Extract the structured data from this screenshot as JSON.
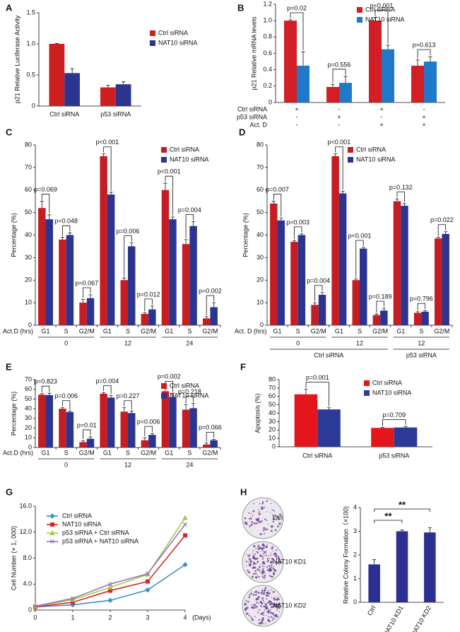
{
  "chart_data": [
    {
      "type": "bar",
      "panel": "A",
      "ylabel": "p21 Relative Luciferase Activity",
      "categories": [
        "Ctrl siRNA",
        "p53 siRNA"
      ],
      "series": [
        {
          "name": "Ctrl siRNA",
          "color": "#cc1f1f",
          "values": [
            1.0,
            0.3
          ],
          "errors": [
            0.005,
            0.035
          ]
        },
        {
          "name": "NAT10 siRNA",
          "color": "#2b3590",
          "values": [
            0.53,
            0.35
          ],
          "errors": [
            0.07,
            0.04
          ]
        }
      ],
      "ylim": [
        0,
        1.5
      ],
      "yticks": [
        0,
        0.5,
        {
          "value": 1.0,
          "label": "1.0"
        },
        1.5
      ]
    },
    {
      "type": "bar",
      "panel": "B",
      "ylabel": "p21 Relative mRNA levels",
      "categories": [
        null,
        null,
        null,
        null
      ],
      "series": [
        {
          "name": "Ctrl siRNA",
          "color": "#d21f26",
          "values": [
            1.0,
            0.19,
            1.0,
            0.45
          ],
          "errors": [
            0.01,
            0.03,
            0.04,
            0.07
          ]
        },
        {
          "name": "NAT10 siRNA",
          "color": "#1f78c8",
          "values": [
            0.45,
            0.24,
            0.65,
            0.5
          ],
          "errors": [
            0.17,
            0.08,
            0.05,
            0.06
          ]
        }
      ],
      "ylim": [
        0,
        1.2
      ],
      "yticks": [
        0,
        0.2,
        0.4,
        0.6,
        0.8,
        {
          "value": 1.0,
          "label": "1.0"
        },
        1.2
      ],
      "pvalues": [
        "p=0.02",
        "p=0.556",
        "p<0.001",
        "p=0.613"
      ],
      "condition_table": [
        {
          "label": "Ctrl siRNA",
          "signs": [
            "+",
            "-",
            "+",
            "-"
          ]
        },
        {
          "label": "p53 siRNA",
          "signs": [
            "-",
            "+",
            "-",
            "+"
          ]
        },
        {
          "label": "Act. D",
          "signs": [
            "-",
            "-",
            "+",
            "+"
          ]
        }
      ]
    },
    {
      "type": "bar",
      "panel": "C",
      "ylabel": "Percentage (%)",
      "categories": [
        "G1",
        "S",
        "G2/M",
        "G1",
        "S",
        "G2/M",
        "G1",
        "S",
        "G2/M"
      ],
      "series": [
        {
          "name": "Ctrl siRNA",
          "color": "#c41e24",
          "values": [
            52,
            38,
            10,
            75,
            20,
            5,
            60,
            36,
            3
          ],
          "errors": [
            3,
            1,
            1.5,
            1,
            1,
            0.5,
            3,
            2,
            0.8
          ]
        },
        {
          "name": "NAT10 siRNA",
          "color": "#2b3590",
          "values": [
            47,
            40,
            12,
            58,
            35,
            7,
            47,
            44,
            8
          ],
          "errors": [
            2,
            1,
            1.5,
            1,
            1.5,
            1.5,
            1,
            2,
            2
          ]
        }
      ],
      "ylim": [
        0,
        80
      ],
      "yticks": [
        0,
        10,
        20,
        30,
        40,
        50,
        60,
        70,
        80
      ],
      "pvalues": [
        "p=0.069",
        "p=0.048",
        "p=0.067",
        "p<0.001",
        "p=0.006",
        "p=0.012",
        "p<0.001",
        "p=0.004",
        "p=0.002"
      ],
      "group_title": "Act.D (hrs)",
      "groups": [
        "0",
        "12",
        "24"
      ]
    },
    {
      "type": "bar",
      "panel": "D",
      "ylabel": "Percentage (%)",
      "categories": [
        "G1",
        "S",
        "G2/M",
        "G1",
        "S",
        "G2/M",
        "G1",
        "S",
        "G2/M"
      ],
      "series": [
        {
          "name": "Ctrl siRNA",
          "color": "#c41e24",
          "values": [
            54,
            37,
            9,
            75,
            20,
            4.5,
            55,
            5.5,
            38.5
          ],
          "errors": [
            1,
            0.5,
            1,
            1,
            0.5,
            0.5,
            1,
            0.5,
            0.5
          ]
        },
        {
          "name": "NAT10 siRNA",
          "color": "#2b3590",
          "values": [
            46.5,
            40,
            13.5,
            58.5,
            34,
            6.5,
            53,
            6,
            40.5
          ],
          "errors": [
            1,
            0.5,
            1,
            1,
            0.5,
            1,
            1,
            0.5,
            1
          ]
        }
      ],
      "ylim": [
        0,
        80
      ],
      "yticks": [
        0,
        10,
        20,
        30,
        40,
        50,
        60,
        70,
        80
      ],
      "pvalues": [
        "p=0.007",
        "p=0.003",
        "p=0.004",
        "p<0.001",
        "p<0.001",
        "p=0.189",
        "p=0.132",
        "p=0.796",
        "p=0.022"
      ],
      "group_title": "Act. D (hrs)",
      "groups": [
        "0",
        "12",
        "12"
      ],
      "supergroups": [
        "Ctrl siRNA",
        "p53 siRNA"
      ]
    },
    {
      "type": "bar",
      "panel": "E",
      "ylabel": "Percentage (%)",
      "categories": [
        "G1",
        "S",
        "G2/M",
        "G1",
        "S",
        "G2/M",
        "G1",
        "S",
        "G2/M"
      ],
      "series": [
        {
          "name": "Ctrl siRNA",
          "color": "#c41e24",
          "values": [
            54.5,
            40,
            5.5,
            55.5,
            37,
            7.5,
            58,
            39,
            3
          ],
          "errors": [
            1,
            1,
            1.5,
            1,
            4,
            2.5,
            3,
            5,
            1.5
          ]
        },
        {
          "name": "NAT10 siRNA",
          "color": "#2b3590",
          "values": [
            54,
            36.5,
            9,
            51.5,
            35.5,
            13,
            52,
            40.5,
            7.5
          ],
          "errors": [
            2,
            1,
            2,
            2,
            2,
            1.5,
            4,
            5,
            1
          ]
        }
      ],
      "ylim": [
        0,
        70
      ],
      "yticks": [
        0,
        10,
        20,
        30,
        40,
        50,
        60,
        70
      ],
      "pvalues": [
        "p=0.823",
        "p=0.006",
        "p=0.01",
        "p=0.004",
        "p=0.227",
        "p=0.006",
        "p=0.002",
        "p=0.218",
        "p=0.066"
      ],
      "group_title": "Act.D (hrs)",
      "groups": [
        "0",
        "12",
        "24"
      ]
    },
    {
      "type": "bar",
      "panel": "F",
      "ylabel": "Apoptosis (%)",
      "categories": [
        "Ctrl siRNA",
        "p53 siRNA"
      ],
      "series": [
        {
          "name": "Ctrl siRNA",
          "color": "#e4161b",
          "values": [
            62.5,
            22.5
          ],
          "errors": [
            6,
            0.5
          ]
        },
        {
          "name": "NAT10 siRNA",
          "color": "#2c3a97",
          "values": [
            44.5,
            23
          ],
          "errors": [
            2,
            1
          ]
        }
      ],
      "ylim": [
        0,
        80
      ],
      "yticks": [
        0,
        10,
        20,
        30,
        40,
        50,
        60,
        70,
        80
      ],
      "pvalues": [
        "p=0.001",
        "p=0.709"
      ]
    },
    {
      "type": "line",
      "panel": "G",
      "ylabel": "Cell Number (× 1, 000)",
      "xlabel": "(Days)",
      "x": [
        0,
        1,
        2,
        3,
        4
      ],
      "xlim": [
        0,
        4
      ],
      "xticks": [
        0,
        1,
        2,
        3,
        4
      ],
      "series": [
        {
          "name": "Ctrl siRNA",
          "color": "#3c8ed3",
          "values": [
            0.5,
            0.8,
            1.5,
            3.1,
            7.0
          ]
        },
        {
          "name": "NAT10 siRNA",
          "color": "#d62828",
          "values": [
            0.5,
            1.2,
            3.0,
            4.4,
            11.5
          ]
        },
        {
          "name": "p53 siRNA + Ctrl siRNA",
          "color": "#a6c94a",
          "values": [
            0.6,
            1.6,
            3.5,
            5.5,
            14.2
          ]
        },
        {
          "name": "p53 siRNA + NAT10 siRNA",
          "color": "#9b6fb8",
          "values": [
            0.6,
            1.8,
            4.0,
            5.6,
            13.2
          ]
        }
      ],
      "ylim": [
        0,
        16
      ],
      "yticks": [
        0,
        {
          "value": 4,
          "label": "4.0"
        },
        {
          "value": 8,
          "label": "8.0"
        },
        {
          "value": 12,
          "label": "12.0"
        },
        {
          "value": 16,
          "label": "16.0"
        }
      ]
    },
    {
      "type": "bar",
      "panel": "H",
      "ylabel": "Relative Colony Formation（×100)",
      "categories": [
        "Ctrl",
        "NAT10 KD1",
        "NAT10 KD2"
      ],
      "series": [
        {
          "name": "Relative Colony Formation",
          "color": "#2b2f8f",
          "values": [
            1.6,
            3.0,
            2.95
          ],
          "errors": [
            0.2,
            0.05,
            0.2
          ]
        }
      ],
      "ylim": [
        0,
        4
      ],
      "yticks": [
        0,
        1,
        2,
        3,
        4
      ],
      "significance": [
        "**",
        "**"
      ],
      "plate_labels": [
        "Ctrl",
        "NAT10 KD1",
        "NAT10 KD2"
      ]
    }
  ]
}
